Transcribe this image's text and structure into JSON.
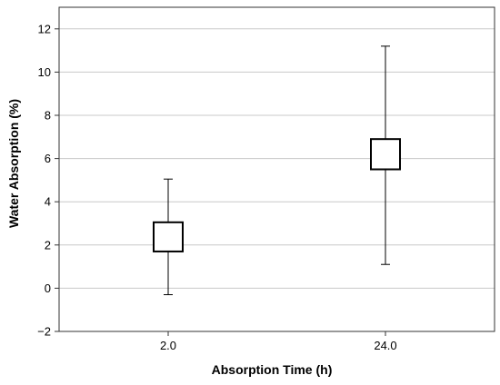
{
  "chart_data": {
    "type": "box",
    "title": "",
    "xlabel": "Absorption Time (h)",
    "ylabel": "Water Absorption (%)",
    "categories": [
      "2.0",
      "24.0"
    ],
    "ylim": [
      -2,
      13
    ],
    "y_ticks": [
      -2,
      0,
      2,
      4,
      6,
      8,
      10,
      12
    ],
    "grid": true,
    "legend": "none",
    "boxes": [
      {
        "category": "2.0",
        "whisker_low": -0.3,
        "q1": 1.7,
        "q3": 3.05,
        "whisker_high": 5.05
      },
      {
        "category": "24.0",
        "whisker_low": 1.1,
        "q1": 5.5,
        "q3": 6.9,
        "whisker_high": 11.2
      }
    ],
    "colors": {
      "box_fill": "#ffffff",
      "box_stroke": "#000000",
      "grid": "#c8c8c8",
      "axis": "#333333"
    }
  }
}
